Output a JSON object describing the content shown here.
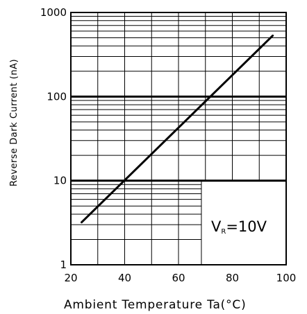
{
  "chart_data": {
    "type": "line",
    "title": "",
    "xlabel": "Ambient Temperature Ta(°C)",
    "ylabel": "Reverse Dark Current (nA)",
    "xlim": [
      20,
      100
    ],
    "ylim": [
      1,
      1000
    ],
    "yscale": "log",
    "grid": true,
    "x_ticks": [
      "20",
      "40",
      "60",
      "80",
      "100"
    ],
    "y_ticks": [
      "1",
      "10",
      "100",
      "1000"
    ],
    "series": [
      {
        "x": [
          24,
          95
        ],
        "y": [
          3.2,
          530
        ]
      }
    ],
    "annotation": {
      "main": "V",
      "sub": "R",
      "rest": "=10V"
    }
  }
}
